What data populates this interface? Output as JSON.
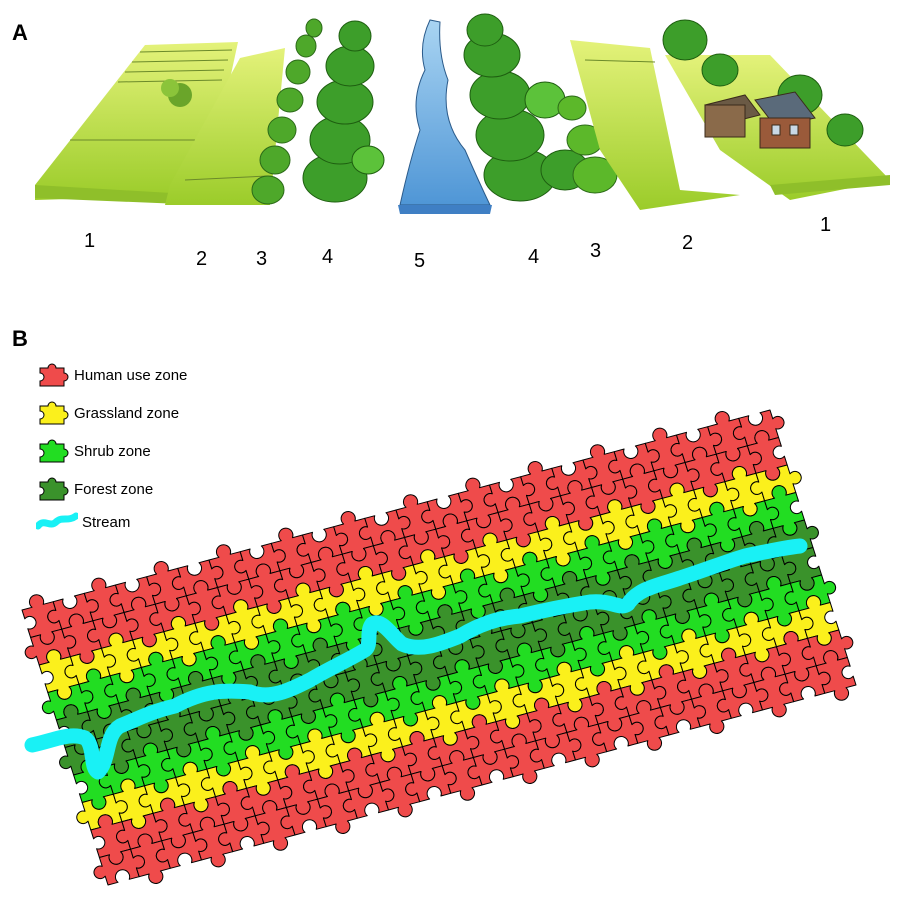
{
  "panel_a": {
    "label": "A",
    "zone_numbers": [
      "1",
      "2",
      "3",
      "4",
      "5",
      "4",
      "3",
      "2",
      "1"
    ]
  },
  "panel_b": {
    "label": "B",
    "legend": [
      {
        "label": "Human use zone",
        "color": "#ef4b4b",
        "icon": "puzzle-piece-icon"
      },
      {
        "label": "Grassland zone",
        "color": "#fbf01c",
        "icon": "puzzle-piece-icon"
      },
      {
        "label": "Shrub zone",
        "color": "#22dd22",
        "icon": "puzzle-piece-icon"
      },
      {
        "label": "Forest zone",
        "color": "#3a922b",
        "icon": "puzzle-piece-icon"
      },
      {
        "label": "Stream",
        "color": "#19f1f5",
        "icon": "stream-icon"
      }
    ],
    "rows_far_to_near": [
      "human",
      "human",
      "grass",
      "shrub",
      "forest",
      "forest",
      "shrub",
      "grass",
      "human",
      "human"
    ]
  }
}
